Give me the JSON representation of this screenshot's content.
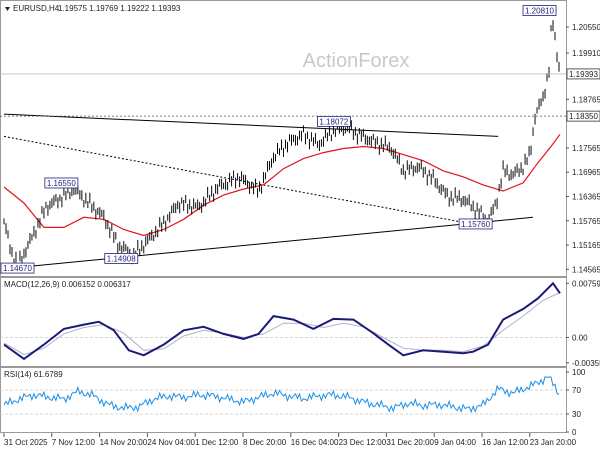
{
  "header": {
    "symbol": "EURUSD,H4",
    "ohlc": "1.19575 1.19769 1.19222 1.19393",
    "watermark": "ActionForex"
  },
  "colors": {
    "candle": "#0b0b0b",
    "ma": "#e0141e",
    "macd_line": "#1a1a7a",
    "macd_signal": "#b0b0c8",
    "rsi": "#1e8fe6",
    "trend": "#000000",
    "label_border": "#1f1f7a"
  },
  "chart_data": [
    {
      "type": "line",
      "name": "price",
      "title": "EURUSD,H4",
      "ylim": [
        1.144,
        1.2117
      ],
      "yticks": [
        "1.20550",
        "1.19910",
        "1.18765",
        "1.17565",
        "1.16965",
        "1.16365",
        "1.15765",
        "1.15165",
        "1.14565"
      ],
      "price_labels": [
        "1.19393",
        "1.18350"
      ],
      "xlabels": [
        "31 Oct 2025",
        "7 Nov 12:00",
        "14 Nov 20:00",
        "24 Nov 04:00",
        "1 Dec 12:00",
        "8 Dec 20:00",
        "16 Dec 04:00",
        "23 Dec 12:00",
        "31 Dec 20:00",
        "9 Jan 04:00",
        "16 Jan 12:00",
        "23 Jan 20:00"
      ],
      "annotations": [
        "1.20810",
        "1.18072",
        "1.16550",
        "1.15760",
        "1.14908",
        "1.14670"
      ],
      "price_points": [
        [
          0,
          1.1575
        ],
        [
          7,
          1.1502
        ],
        [
          14,
          1.1467
        ],
        [
          28,
          1.1535
        ],
        [
          42,
          1.161
        ],
        [
          55,
          1.163
        ],
        [
          70,
          1.1655
        ],
        [
          85,
          1.162
        ],
        [
          100,
          1.1585
        ],
        [
          115,
          1.1515
        ],
        [
          130,
          1.1491
        ],
        [
          145,
          1.153
        ],
        [
          160,
          1.157
        ],
        [
          175,
          1.162
        ],
        [
          195,
          1.161
        ],
        [
          215,
          1.166
        ],
        [
          235,
          1.1685
        ],
        [
          255,
          1.165
        ],
        [
          270,
          1.1735
        ],
        [
          285,
          1.177
        ],
        [
          300,
          1.179
        ],
        [
          315,
          1.1765
        ],
        [
          330,
          1.18
        ],
        [
          343,
          1.1807
        ],
        [
          355,
          1.179
        ],
        [
          372,
          1.177
        ],
        [
          388,
          1.1755
        ],
        [
          400,
          1.17
        ],
        [
          415,
          1.171
        ],
        [
          430,
          1.168
        ],
        [
          445,
          1.1635
        ],
        [
          460,
          1.163
        ],
        [
          475,
          1.16
        ],
        [
          485,
          1.1576
        ],
        [
          493,
          1.162
        ],
        [
          500,
          1.17
        ],
        [
          510,
          1.169
        ],
        [
          520,
          1.171
        ],
        [
          527,
          1.174
        ],
        [
          532,
          1.1835
        ],
        [
          540,
          1.188
        ],
        [
          546,
          1.195
        ],
        [
          549,
          1.2081
        ],
        [
          553,
          1.201
        ],
        [
          557,
          1.1939
        ]
      ],
      "ma_points": [
        [
          0,
          1.166
        ],
        [
          20,
          1.162
        ],
        [
          40,
          1.156
        ],
        [
          60,
          1.156
        ],
        [
          80,
          1.1585
        ],
        [
          100,
          1.158
        ],
        [
          120,
          1.1555
        ],
        [
          140,
          1.154
        ],
        [
          160,
          1.1555
        ],
        [
          180,
          1.158
        ],
        [
          200,
          1.1615
        ],
        [
          220,
          1.164
        ],
        [
          240,
          1.1655
        ],
        [
          260,
          1.1665
        ],
        [
          280,
          1.1705
        ],
        [
          300,
          1.173
        ],
        [
          320,
          1.1745
        ],
        [
          340,
          1.1755
        ],
        [
          360,
          1.176
        ],
        [
          380,
          1.1755
        ],
        [
          400,
          1.174
        ],
        [
          420,
          1.1725
        ],
        [
          440,
          1.17
        ],
        [
          460,
          1.1685
        ],
        [
          480,
          1.1665
        ],
        [
          500,
          1.165
        ],
        [
          520,
          1.167
        ],
        [
          535,
          1.172
        ],
        [
          548,
          1.176
        ],
        [
          557,
          1.179
        ]
      ],
      "trendlines": [
        {
          "name": "upper-trendline",
          "points": [
            [
              0,
              1.184
            ],
            [
              495,
              1.1785
            ]
          ]
        },
        {
          "name": "support-trendline",
          "points": [
            [
              30,
              1.1465
            ],
            [
              530,
              1.1585
            ]
          ]
        },
        {
          "name": "dotted-trendline",
          "points": [
            [
              0,
              1.1785
            ],
            [
              455,
              1.1575
            ]
          ]
        }
      ]
    },
    {
      "type": "line",
      "name": "MACD",
      "title": "MACD(12,26,9) 0.006152 0.006317",
      "ylim": [
        -0.004,
        0.0082
      ],
      "yticks": [
        "0.007598",
        "0.00",
        "-0.00355"
      ],
      "line_points": [
        [
          0,
          -0.001
        ],
        [
          20,
          -0.003
        ],
        [
          40,
          -0.001
        ],
        [
          60,
          0.0012
        ],
        [
          80,
          0.0018
        ],
        [
          95,
          0.0022
        ],
        [
          110,
          0.001
        ],
        [
          125,
          -0.0018
        ],
        [
          140,
          -0.0025
        ],
        [
          160,
          -0.001
        ],
        [
          180,
          0.001
        ],
        [
          200,
          0.0015
        ],
        [
          220,
          0.0005
        ],
        [
          240,
          -0.0002
        ],
        [
          255,
          0.0005
        ],
        [
          270,
          0.003
        ],
        [
          290,
          0.0025
        ],
        [
          310,
          0.0012
        ],
        [
          330,
          0.0026
        ],
        [
          350,
          0.0025
        ],
        [
          370,
          0.0006
        ],
        [
          385,
          -0.001
        ],
        [
          400,
          -0.0025
        ],
        [
          420,
          -0.0018
        ],
        [
          440,
          -0.002
        ],
        [
          460,
          -0.0022
        ],
        [
          470,
          -0.002
        ],
        [
          485,
          -0.001
        ],
        [
          500,
          0.0025
        ],
        [
          520,
          0.004
        ],
        [
          535,
          0.0055
        ],
        [
          550,
          0.0076
        ],
        [
          557,
          0.0062
        ]
      ],
      "signal_points": [
        [
          0,
          -0.0008
        ],
        [
          20,
          -0.0024
        ],
        [
          40,
          -0.0015
        ],
        [
          60,
          0.0005
        ],
        [
          80,
          0.0014
        ],
        [
          100,
          0.0018
        ],
        [
          120,
          0.0006
        ],
        [
          140,
          -0.0018
        ],
        [
          160,
          -0.0016
        ],
        [
          180,
          0.0002
        ],
        [
          200,
          0.001
        ],
        [
          220,
          0.0006
        ],
        [
          240,
          0.0
        ],
        [
          260,
          0.0005
        ],
        [
          280,
          0.002
        ],
        [
          300,
          0.002
        ],
        [
          320,
          0.0014
        ],
        [
          340,
          0.002
        ],
        [
          360,
          0.0015
        ],
        [
          380,
          0.0
        ],
        [
          400,
          -0.0015
        ],
        [
          420,
          -0.0018
        ],
        [
          440,
          -0.0018
        ],
        [
          460,
          -0.002
        ],
        [
          480,
          -0.0012
        ],
        [
          500,
          0.001
        ],
        [
          520,
          0.003
        ],
        [
          540,
          0.0052
        ],
        [
          557,
          0.0063
        ]
      ]
    },
    {
      "type": "line",
      "name": "RSI",
      "title": "RSI(14) 61.6789",
      "ylim": [
        0,
        105
      ],
      "yticks": [
        "100",
        "70",
        "30",
        "0"
      ],
      "levels": [
        70,
        30
      ],
      "points": [
        [
          0,
          45
        ],
        [
          15,
          55
        ],
        [
          30,
          62
        ],
        [
          45,
          58
        ],
        [
          60,
          55
        ],
        [
          75,
          68
        ],
        [
          90,
          60
        ],
        [
          105,
          45
        ],
        [
          120,
          40
        ],
        [
          135,
          42
        ],
        [
          150,
          55
        ],
        [
          165,
          60
        ],
        [
          180,
          58
        ],
        [
          195,
          62
        ],
        [
          210,
          60
        ],
        [
          225,
          55
        ],
        [
          240,
          50
        ],
        [
          255,
          58
        ],
        [
          270,
          65
        ],
        [
          285,
          60
        ],
        [
          300,
          56
        ],
        [
          315,
          60
        ],
        [
          330,
          62
        ],
        [
          345,
          58
        ],
        [
          360,
          50
        ],
        [
          375,
          45
        ],
        [
          390,
          40
        ],
        [
          405,
          48
        ],
        [
          420,
          44
        ],
        [
          435,
          46
        ],
        [
          450,
          42
        ],
        [
          465,
          38
        ],
        [
          480,
          45
        ],
        [
          495,
          72
        ],
        [
          510,
          65
        ],
        [
          525,
          75
        ],
        [
          535,
          82
        ],
        [
          545,
          93
        ],
        [
          550,
          80
        ],
        [
          557,
          62
        ]
      ]
    }
  ]
}
